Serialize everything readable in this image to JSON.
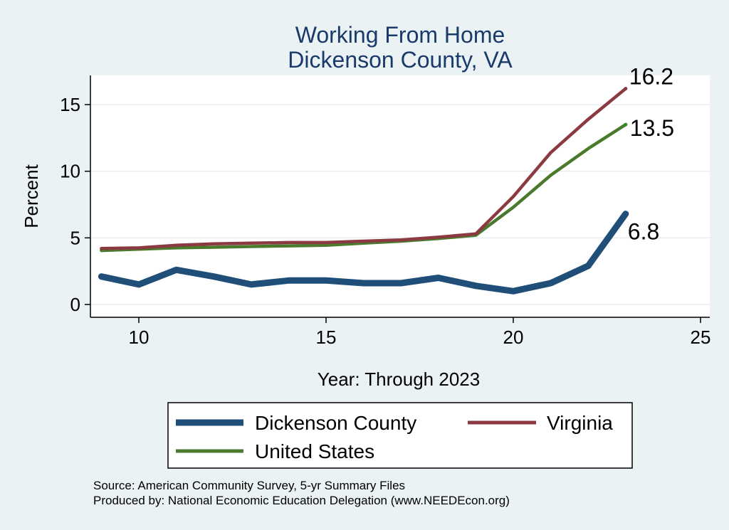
{
  "chart_data": {
    "type": "line",
    "title": [
      "Working From Home",
      "Dickenson County, VA"
    ],
    "xlabel": "Year: Through 2023",
    "ylabel": "Percent",
    "xlim": [
      9,
      25
    ],
    "ylim": [
      0,
      16.5
    ],
    "xticks": [
      10,
      15,
      20,
      25
    ],
    "yticks": [
      0,
      5,
      10,
      15
    ],
    "grid": true,
    "legend_position": "bottom",
    "x": [
      9,
      10,
      11,
      12,
      13,
      14,
      15,
      16,
      17,
      18,
      19,
      20,
      21,
      22,
      23
    ],
    "series": [
      {
        "name": "Dickenson County",
        "color": "#1f4e79",
        "values": [
          2.1,
          1.5,
          2.6,
          2.1,
          1.5,
          1.8,
          1.8,
          1.6,
          1.6,
          2.0,
          1.4,
          1.0,
          1.6,
          2.9,
          6.8
        ],
        "end_label": "6.8"
      },
      {
        "name": "Virginia",
        "color": "#8b3a42",
        "values": [
          4.2,
          4.25,
          4.45,
          4.55,
          4.6,
          4.65,
          4.65,
          4.75,
          4.85,
          5.05,
          5.3,
          8.1,
          11.4,
          13.9,
          16.2
        ],
        "end_label": "16.2"
      },
      {
        "name": "United States",
        "color": "#4a7a2c",
        "values": [
          4.05,
          4.15,
          4.25,
          4.3,
          4.35,
          4.4,
          4.45,
          4.6,
          4.75,
          4.95,
          5.2,
          7.3,
          9.7,
          11.7,
          13.5
        ],
        "end_label": "13.5"
      }
    ],
    "source_lines": [
      "Source: American Community Survey, 5-yr Summary Files",
      "Produced by: National Economic Education Delegation (www.NEEDEcon.org)"
    ]
  }
}
